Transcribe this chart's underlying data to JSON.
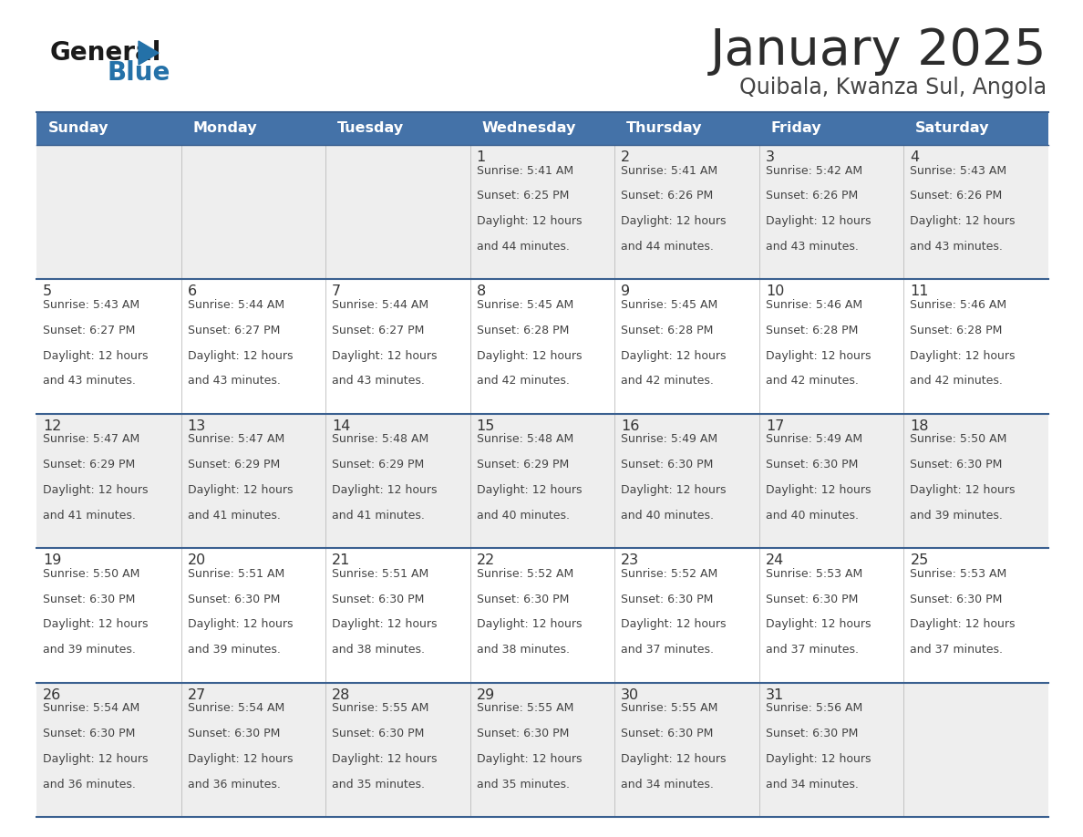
{
  "title": "January 2025",
  "subtitle": "Quibala, Kwanza Sul, Angola",
  "days_of_week": [
    "Sunday",
    "Monday",
    "Tuesday",
    "Wednesday",
    "Thursday",
    "Friday",
    "Saturday"
  ],
  "header_bg_color": "#4472A8",
  "header_text_color": "#FFFFFF",
  "row_bg_even": "#EEEEEE",
  "row_bg_odd": "#FFFFFF",
  "border_color": "#3A6090",
  "day_number_color": "#333333",
  "text_color": "#444444",
  "title_color": "#2C2C2C",
  "subtitle_color": "#444444",
  "logo_general_color": "#1A1A1A",
  "logo_blue_color": "#2471A8",
  "calendar_data": [
    {
      "day": 1,
      "row": 0,
      "col": 3,
      "sunrise": "5:41 AM",
      "sunset": "6:25 PM",
      "daylight_mins": "44"
    },
    {
      "day": 2,
      "row": 0,
      "col": 4,
      "sunrise": "5:41 AM",
      "sunset": "6:26 PM",
      "daylight_mins": "44"
    },
    {
      "day": 3,
      "row": 0,
      "col": 5,
      "sunrise": "5:42 AM",
      "sunset": "6:26 PM",
      "daylight_mins": "43"
    },
    {
      "day": 4,
      "row": 0,
      "col": 6,
      "sunrise": "5:43 AM",
      "sunset": "6:26 PM",
      "daylight_mins": "43"
    },
    {
      "day": 5,
      "row": 1,
      "col": 0,
      "sunrise": "5:43 AM",
      "sunset": "6:27 PM",
      "daylight_mins": "43"
    },
    {
      "day": 6,
      "row": 1,
      "col": 1,
      "sunrise": "5:44 AM",
      "sunset": "6:27 PM",
      "daylight_mins": "43"
    },
    {
      "day": 7,
      "row": 1,
      "col": 2,
      "sunrise": "5:44 AM",
      "sunset": "6:27 PM",
      "daylight_mins": "43"
    },
    {
      "day": 8,
      "row": 1,
      "col": 3,
      "sunrise": "5:45 AM",
      "sunset": "6:28 PM",
      "daylight_mins": "42"
    },
    {
      "day": 9,
      "row": 1,
      "col": 4,
      "sunrise": "5:45 AM",
      "sunset": "6:28 PM",
      "daylight_mins": "42"
    },
    {
      "day": 10,
      "row": 1,
      "col": 5,
      "sunrise": "5:46 AM",
      "sunset": "6:28 PM",
      "daylight_mins": "42"
    },
    {
      "day": 11,
      "row": 1,
      "col": 6,
      "sunrise": "5:46 AM",
      "sunset": "6:28 PM",
      "daylight_mins": "42"
    },
    {
      "day": 12,
      "row": 2,
      "col": 0,
      "sunrise": "5:47 AM",
      "sunset": "6:29 PM",
      "daylight_mins": "41"
    },
    {
      "day": 13,
      "row": 2,
      "col": 1,
      "sunrise": "5:47 AM",
      "sunset": "6:29 PM",
      "daylight_mins": "41"
    },
    {
      "day": 14,
      "row": 2,
      "col": 2,
      "sunrise": "5:48 AM",
      "sunset": "6:29 PM",
      "daylight_mins": "41"
    },
    {
      "day": 15,
      "row": 2,
      "col": 3,
      "sunrise": "5:48 AM",
      "sunset": "6:29 PM",
      "daylight_mins": "40"
    },
    {
      "day": 16,
      "row": 2,
      "col": 4,
      "sunrise": "5:49 AM",
      "sunset": "6:30 PM",
      "daylight_mins": "40"
    },
    {
      "day": 17,
      "row": 2,
      "col": 5,
      "sunrise": "5:49 AM",
      "sunset": "6:30 PM",
      "daylight_mins": "40"
    },
    {
      "day": 18,
      "row": 2,
      "col": 6,
      "sunrise": "5:50 AM",
      "sunset": "6:30 PM",
      "daylight_mins": "39"
    },
    {
      "day": 19,
      "row": 3,
      "col": 0,
      "sunrise": "5:50 AM",
      "sunset": "6:30 PM",
      "daylight_mins": "39"
    },
    {
      "day": 20,
      "row": 3,
      "col": 1,
      "sunrise": "5:51 AM",
      "sunset": "6:30 PM",
      "daylight_mins": "39"
    },
    {
      "day": 21,
      "row": 3,
      "col": 2,
      "sunrise": "5:51 AM",
      "sunset": "6:30 PM",
      "daylight_mins": "38"
    },
    {
      "day": 22,
      "row": 3,
      "col": 3,
      "sunrise": "5:52 AM",
      "sunset": "6:30 PM",
      "daylight_mins": "38"
    },
    {
      "day": 23,
      "row": 3,
      "col": 4,
      "sunrise": "5:52 AM",
      "sunset": "6:30 PM",
      "daylight_mins": "37"
    },
    {
      "day": 24,
      "row": 3,
      "col": 5,
      "sunrise": "5:53 AM",
      "sunset": "6:30 PM",
      "daylight_mins": "37"
    },
    {
      "day": 25,
      "row": 3,
      "col": 6,
      "sunrise": "5:53 AM",
      "sunset": "6:30 PM",
      "daylight_mins": "37"
    },
    {
      "day": 26,
      "row": 4,
      "col": 0,
      "sunrise": "5:54 AM",
      "sunset": "6:30 PM",
      "daylight_mins": "36"
    },
    {
      "day": 27,
      "row": 4,
      "col": 1,
      "sunrise": "5:54 AM",
      "sunset": "6:30 PM",
      "daylight_mins": "36"
    },
    {
      "day": 28,
      "row": 4,
      "col": 2,
      "sunrise": "5:55 AM",
      "sunset": "6:30 PM",
      "daylight_mins": "35"
    },
    {
      "day": 29,
      "row": 4,
      "col": 3,
      "sunrise": "5:55 AM",
      "sunset": "6:30 PM",
      "daylight_mins": "35"
    },
    {
      "day": 30,
      "row": 4,
      "col": 4,
      "sunrise": "5:55 AM",
      "sunset": "6:30 PM",
      "daylight_mins": "34"
    },
    {
      "day": 31,
      "row": 4,
      "col": 5,
      "sunrise": "5:56 AM",
      "sunset": "6:30 PM",
      "daylight_mins": "34"
    }
  ]
}
